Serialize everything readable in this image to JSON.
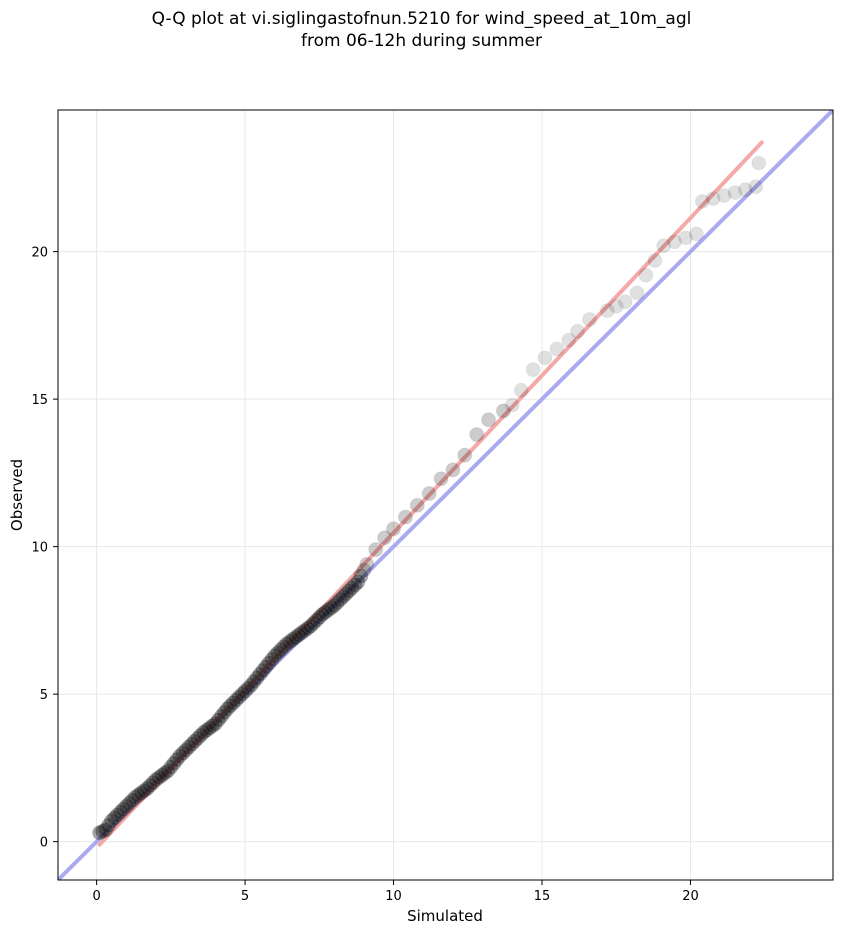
{
  "chart_data": {
    "type": "scatter",
    "title_line1": "Q-Q plot at vi.siglingastofnun.5210 for wind_speed_at_10m_agl",
    "title_line2": "from 06-12h during summer",
    "xlabel": "Simulated",
    "ylabel": "Observed",
    "xlim": [
      -1.3,
      24.8
    ],
    "ylim": [
      -1.3,
      24.8
    ],
    "xticks": [
      0,
      5,
      10,
      15,
      20
    ],
    "yticks": [
      0,
      5,
      10,
      15,
      20
    ],
    "grid": true,
    "identity_line": {
      "from": [
        -1.3,
        -1.3
      ],
      "to": [
        24.8,
        24.8
      ],
      "color": "#aaaaf0"
    },
    "fit_line": {
      "from": [
        0.1,
        -0.1
      ],
      "to": [
        22.4,
        23.7
      ],
      "color": "#f4a8a8"
    },
    "point_color": "#000000",
    "points": [
      [
        0.1,
        0.3
      ],
      [
        0.3,
        0.4
      ],
      [
        0.5,
        0.7
      ],
      [
        0.7,
        0.9
      ],
      [
        1.0,
        1.2
      ],
      [
        1.3,
        1.5
      ],
      [
        1.7,
        1.8
      ],
      [
        2.0,
        2.1
      ],
      [
        2.4,
        2.4
      ],
      [
        2.8,
        2.9
      ],
      [
        3.2,
        3.3
      ],
      [
        3.6,
        3.7
      ],
      [
        4.0,
        4.0
      ],
      [
        4.4,
        4.5
      ],
      [
        4.8,
        4.9
      ],
      [
        5.2,
        5.3
      ],
      [
        5.6,
        5.8
      ],
      [
        6.0,
        6.3
      ],
      [
        6.4,
        6.7
      ],
      [
        6.8,
        7.0
      ],
      [
        7.2,
        7.3
      ],
      [
        7.6,
        7.7
      ],
      [
        8.0,
        8.0
      ],
      [
        8.4,
        8.4
      ],
      [
        8.8,
        8.8
      ],
      [
        9.1,
        9.4
      ],
      [
        9.4,
        9.9
      ],
      [
        9.7,
        10.3
      ],
      [
        10.0,
        10.6
      ],
      [
        10.4,
        11.0
      ],
      [
        10.8,
        11.4
      ],
      [
        11.2,
        11.8
      ],
      [
        11.6,
        12.3
      ],
      [
        12.0,
        12.6
      ],
      [
        12.4,
        13.1
      ],
      [
        12.8,
        13.8
      ],
      [
        13.2,
        14.3
      ],
      [
        13.7,
        14.6
      ],
      [
        14.0,
        14.8
      ],
      [
        14.3,
        15.3
      ],
      [
        14.7,
        16.0
      ],
      [
        15.1,
        16.4
      ],
      [
        15.5,
        16.7
      ],
      [
        15.9,
        17.0
      ],
      [
        16.2,
        17.3
      ],
      [
        16.6,
        17.7
      ],
      [
        17.2,
        18.0
      ],
      [
        17.8,
        18.3
      ],
      [
        18.2,
        18.6
      ],
      [
        18.5,
        19.2
      ],
      [
        19.1,
        20.2
      ],
      [
        20.2,
        20.6
      ],
      [
        20.4,
        21.7
      ],
      [
        21.5,
        22.0
      ],
      [
        22.2,
        22.2
      ],
      [
        22.3,
        23.0
      ]
    ]
  }
}
